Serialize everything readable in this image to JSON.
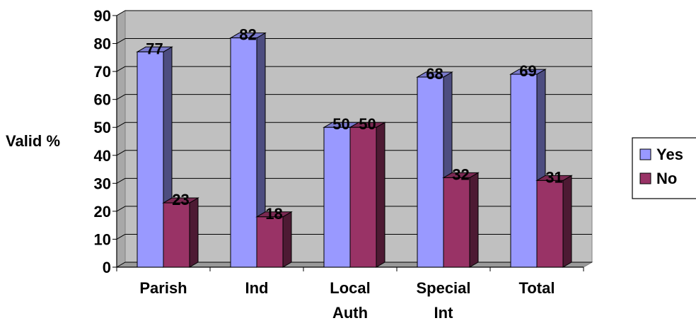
{
  "chart_data": {
    "type": "bar",
    "title": "",
    "xlabel": "",
    "ylabel": "Valid %",
    "ylim": [
      0,
      90
    ],
    "yticks": [
      0,
      10,
      20,
      30,
      40,
      50,
      60,
      70,
      80,
      90
    ],
    "grid": true,
    "legend_position": "right",
    "categories": [
      [
        "Parish"
      ],
      [
        "Ind"
      ],
      [
        "Local",
        "Auth"
      ],
      [
        "Special",
        "Int"
      ],
      [
        "Total"
      ]
    ],
    "series": [
      {
        "name": "Yes",
        "color": "#9999ff",
        "values": [
          77,
          82,
          50,
          68,
          69
        ]
      },
      {
        "name": "No",
        "color": "#993366",
        "values": [
          23,
          18,
          50,
          32,
          31
        ]
      }
    ],
    "colors": {
      "wall": "#c0c0c0",
      "floor": "#9a9a9a",
      "gridline": "#000000"
    }
  }
}
